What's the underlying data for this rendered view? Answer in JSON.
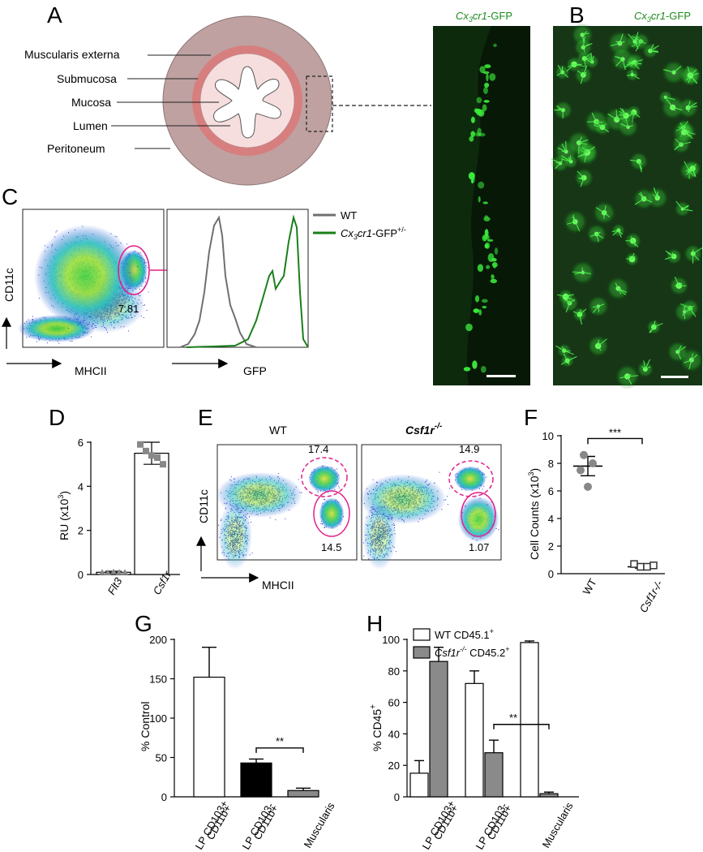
{
  "panel_letters": {
    "a": "A",
    "b": "B",
    "c": "C",
    "d": "D",
    "e": "E",
    "f": "F",
    "g": "G",
    "h": "H"
  },
  "panel_a": {
    "layers": [
      "Muscularis externa",
      "Submucosa",
      "Mucosa",
      "Lumen",
      "Peritoneum"
    ],
    "colors": {
      "muscularis": "#bfa1a1",
      "submucosa": "#d77f7f",
      "mucosa": "#f7dede",
      "lumen": "#ffffff"
    },
    "micrograph_label_italic": "Cx",
    "micrograph_label_sub": "3",
    "micrograph_label_italic2": "cr1",
    "micrograph_label_rest": "-GFP",
    "label_color": "#1e8c1e"
  },
  "panel_c": {
    "y_label": "CD11c",
    "x_label": "MHCII",
    "gate_value": "7.81",
    "hist_x_label": "GFP",
    "legend": [
      {
        "text": "WT",
        "color": "#707070"
      },
      {
        "text_italic": "Cx",
        "text_sub": "3",
        "text_italic2": "cr1",
        "text_rest": "-GFP",
        "text_sup": "+/-",
        "color": "#1a7f1a"
      }
    ]
  },
  "panel_e": {
    "titles": [
      "WT",
      "Csf1r"
    ],
    "title_sup": "-/-",
    "y_label": "CD11c",
    "x_label": "MHCII",
    "gates": {
      "wt_upper": "17.4",
      "wt_lower": "14.5",
      "ko_upper": "14.9",
      "ko_lower": "1.07"
    }
  },
  "chart_data": [
    {
      "panel": "D",
      "type": "bar",
      "categories": [
        "Flt3",
        "Csf1r"
      ],
      "values": [
        0.1,
        5.5
      ],
      "errors": [
        0.05,
        0.5
      ],
      "points": [
        [
          0.1,
          0.08,
          0.12,
          0.1,
          0.1
        ],
        [
          5.9,
          5.6,
          5.4,
          5.3,
          5.0
        ]
      ],
      "ylabel": "RU (x10",
      "ylabel_sup": "3",
      "ylabel_end": ")",
      "ylim": [
        0,
        6
      ],
      "yticks": [
        "0",
        "2",
        "4",
        "6"
      ]
    },
    {
      "panel": "F",
      "type": "scatter",
      "categories": [
        "WT",
        "Csf1r-/-"
      ],
      "values": [
        7.8,
        0.5
      ],
      "errors": [
        0.7,
        0.1
      ],
      "points": [
        [
          8.6,
          8.0,
          7.5,
          6.3
        ],
        [
          0.7,
          0.5,
          0.5,
          0.6
        ]
      ],
      "ylabel": "Cell Counts (x10",
      "ylabel_sup": "3",
      "ylabel_end": ")",
      "ylim": [
        0,
        10
      ],
      "yticks": [
        "0",
        "2",
        "4",
        "6",
        "8",
        "10"
      ],
      "significance": "***"
    },
    {
      "panel": "G",
      "type": "bar",
      "categories": [
        "LP CD103+ CD11b+",
        "LP CD103- CD11b+",
        "Muscularis"
      ],
      "category_lines": [
        [
          "LP CD103+",
          "CD11b+"
        ],
        [
          "LP CD103-",
          "CD11b+"
        ],
        [
          "Muscularis"
        ]
      ],
      "values": [
        152,
        43,
        8
      ],
      "errors": [
        38,
        5,
        3
      ],
      "ylabel": "% Control",
      "ylim": [
        0,
        200
      ],
      "yticks": [
        "0",
        "50",
        "100",
        "150",
        "200"
      ],
      "significance": "**"
    },
    {
      "panel": "H",
      "type": "bar",
      "categories": [
        "LP CD103+ CD11b+",
        "LP CD103- CD11b+",
        "Muscularis"
      ],
      "category_lines": [
        [
          "LP CD103+",
          "CD11b+"
        ],
        [
          "LP CD103-",
          "CD11b+"
        ],
        [
          "Muscularis"
        ]
      ],
      "series": [
        {
          "name": "WT CD45.1",
          "values": [
            15,
            72,
            98
          ],
          "errors": [
            8,
            8,
            1
          ]
        },
        {
          "name": "Csf1r-/- CD45.2",
          "values": [
            86,
            28,
            2
          ],
          "errors": [
            9,
            8,
            1
          ]
        }
      ],
      "legend": [
        {
          "text": "WT CD45.1",
          "sup": "+"
        },
        {
          "italic": "Csf1r",
          "italic_sup": "-/-",
          "text": " CD45.2",
          "sup": "+"
        }
      ],
      "ylabel": "% CD45",
      "ylabel_sup": "+",
      "ylim": [
        0,
        100
      ],
      "yticks": [
        "0",
        "20",
        "40",
        "60",
        "80",
        "100"
      ],
      "significance": "**"
    }
  ]
}
